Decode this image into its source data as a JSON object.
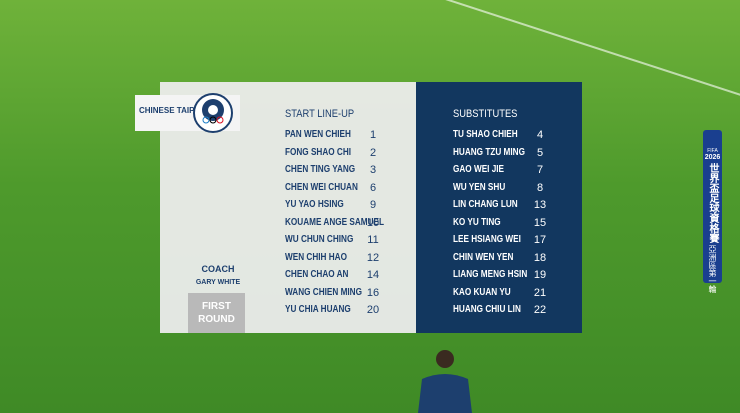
{
  "team": "CHINESE TAIPEI",
  "start_lineup": {
    "title": "START LINE-UP",
    "players": [
      {
        "name": "PAN WEN CHIEH",
        "number": 1
      },
      {
        "name": "FONG SHAO CHI",
        "number": 2
      },
      {
        "name": "CHEN TING YANG",
        "number": 3
      },
      {
        "name": "CHEN WEI CHUAN",
        "number": 6
      },
      {
        "name": "YU YAO HSING",
        "number": 9
      },
      {
        "name": "KOUAME ANGE SAMUEL",
        "number": 10
      },
      {
        "name": "WU CHUN CHING",
        "number": 11
      },
      {
        "name": "WEN CHIH HAO",
        "number": 12
      },
      {
        "name": "CHEN CHAO AN",
        "number": 14
      },
      {
        "name": "WANG CHIEN MING",
        "number": 16
      },
      {
        "name": "YU CHIA HUANG",
        "number": 20
      }
    ]
  },
  "substitutes": {
    "title": "SUBSTITUTES",
    "players": [
      {
        "name": "TU SHAO CHIEH",
        "number": 4
      },
      {
        "name": "HUANG TZU MING",
        "number": 5
      },
      {
        "name": "GAO WEI JIE",
        "number": 7
      },
      {
        "name": "WU YEN SHU",
        "number": 8
      },
      {
        "name": "LIN CHANG LUN",
        "number": 13
      },
      {
        "name": "KO YU TING",
        "number": 15
      },
      {
        "name": "LEE HSIANG WEI",
        "number": 17
      },
      {
        "name": "CHIN WEN YEN",
        "number": 18
      },
      {
        "name": "LIANG MENG HSIN",
        "number": 19
      },
      {
        "name": "KAO KUAN YU",
        "number": 21
      },
      {
        "name": "HUANG CHIU LIN",
        "number": 22
      }
    ]
  },
  "coach": {
    "label": "COACH",
    "name": "GARY WHITE"
  },
  "round": "FIRST ROUND",
  "banner": {
    "org": "FIFA",
    "year": "2026",
    "event": "世界盃足球資格賽",
    "stage": "亞洲區第一輪"
  }
}
